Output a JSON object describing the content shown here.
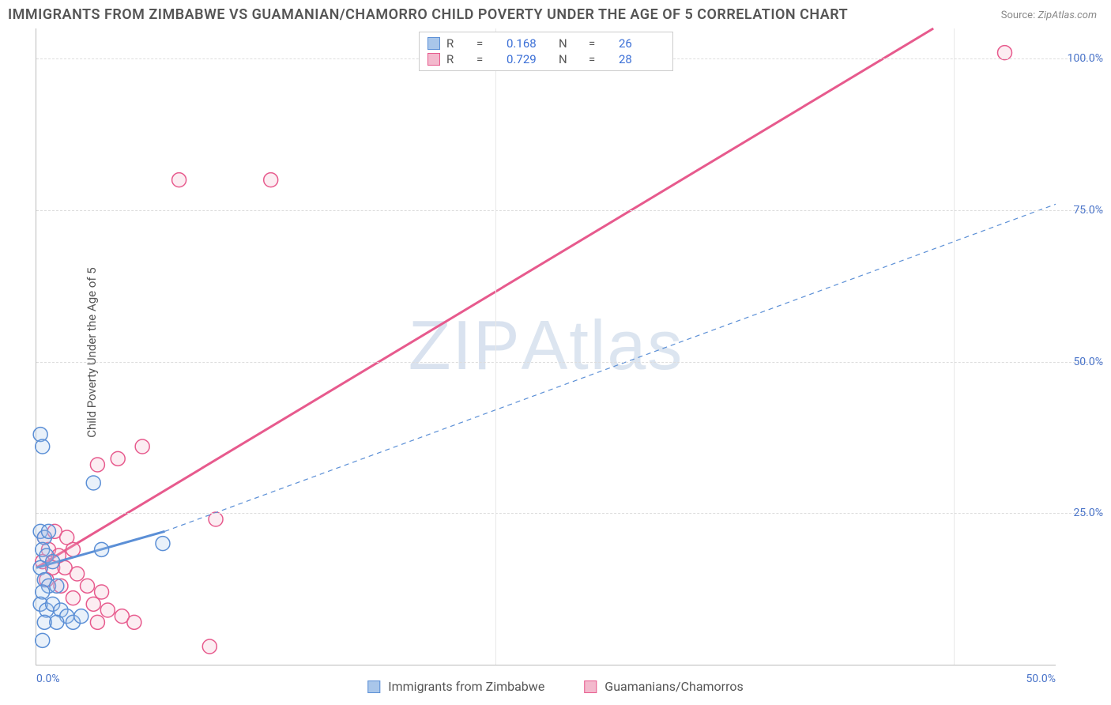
{
  "title": "IMMIGRANTS FROM ZIMBABWE VS GUAMANIAN/CHAMORRO CHILD POVERTY UNDER THE AGE OF 5 CORRELATION CHART",
  "source_label": "Source:",
  "source_value": "ZipAtlas.com",
  "y_axis_label": "Child Poverty Under the Age of 5",
  "watermark": "ZIPAtlas",
  "chart": {
    "type": "scatter",
    "background_color": "#ffffff",
    "grid_color": "#dddddd",
    "axis_color": "#bbbbbb",
    "tick_label_color": "#4a74c9",
    "xlim": [
      0,
      50
    ],
    "ylim": [
      0,
      105
    ],
    "x_ticks": [
      0.0,
      50.0
    ],
    "x_tick_labels": [
      "0.0%",
      "50.0%"
    ],
    "x_grid_positions": [
      22.5,
      45.0
    ],
    "y_ticks": [
      25.0,
      50.0,
      75.0,
      100.0
    ],
    "y_tick_labels": [
      "25.0%",
      "50.0%",
      "75.0%",
      "100.0%"
    ],
    "marker_radius": 9,
    "marker_stroke_width": 1.5,
    "marker_fill_opacity": 0.25,
    "series": [
      {
        "name": "Immigrants from Zimbabwe",
        "color_stroke": "#5b8fd6",
        "color_fill": "#a9c6ea",
        "r_value": "0.168",
        "n_value": "26",
        "trend_line": {
          "x1": 0,
          "y1": 16,
          "x2": 6.3,
          "y2": 22,
          "width": 3,
          "dash": ""
        },
        "trend_ext": {
          "x1": 6.3,
          "y1": 22,
          "x2": 50,
          "y2": 76,
          "width": 1.2,
          "dash": "6 5"
        },
        "points": [
          {
            "x": 0.2,
            "y": 38
          },
          {
            "x": 0.3,
            "y": 36
          },
          {
            "x": 0.2,
            "y": 22
          },
          {
            "x": 0.4,
            "y": 21
          },
          {
            "x": 0.6,
            "y": 22
          },
          {
            "x": 0.3,
            "y": 19
          },
          {
            "x": 0.5,
            "y": 18
          },
          {
            "x": 0.2,
            "y": 16
          },
          {
            "x": 0.8,
            "y": 17
          },
          {
            "x": 0.4,
            "y": 14
          },
          {
            "x": 0.6,
            "y": 13
          },
          {
            "x": 0.3,
            "y": 12
          },
          {
            "x": 1.0,
            "y": 13
          },
          {
            "x": 0.2,
            "y": 10
          },
          {
            "x": 0.5,
            "y": 9
          },
          {
            "x": 0.8,
            "y": 10
          },
          {
            "x": 1.2,
            "y": 9
          },
          {
            "x": 1.5,
            "y": 8
          },
          {
            "x": 0.4,
            "y": 7
          },
          {
            "x": 1.0,
            "y": 7
          },
          {
            "x": 1.8,
            "y": 7
          },
          {
            "x": 2.2,
            "y": 8
          },
          {
            "x": 0.3,
            "y": 4
          },
          {
            "x": 2.8,
            "y": 30
          },
          {
            "x": 3.2,
            "y": 19
          },
          {
            "x": 6.2,
            "y": 20
          }
        ]
      },
      {
        "name": "Guamanians/Chamorros",
        "color_stroke": "#e75a8d",
        "color_fill": "#f3b9cd",
        "r_value": "0.729",
        "n_value": "28",
        "trend_line": {
          "x1": 0,
          "y1": 16,
          "x2": 44,
          "y2": 105,
          "width": 3,
          "dash": ""
        },
        "trend_ext": null,
        "points": [
          {
            "x": 47.5,
            "y": 101
          },
          {
            "x": 7.0,
            "y": 80
          },
          {
            "x": 11.5,
            "y": 80
          },
          {
            "x": 4.0,
            "y": 34
          },
          {
            "x": 5.2,
            "y": 36
          },
          {
            "x": 3.0,
            "y": 33
          },
          {
            "x": 8.8,
            "y": 24
          },
          {
            "x": 0.4,
            "y": 21
          },
          {
            "x": 0.9,
            "y": 22
          },
          {
            "x": 1.5,
            "y": 21
          },
          {
            "x": 0.6,
            "y": 19
          },
          {
            "x": 1.1,
            "y": 18
          },
          {
            "x": 1.8,
            "y": 19
          },
          {
            "x": 0.3,
            "y": 17
          },
          {
            "x": 0.8,
            "y": 16
          },
          {
            "x": 1.4,
            "y": 16
          },
          {
            "x": 2.0,
            "y": 15
          },
          {
            "x": 0.5,
            "y": 14
          },
          {
            "x": 1.2,
            "y": 13
          },
          {
            "x": 2.5,
            "y": 13
          },
          {
            "x": 3.2,
            "y": 12
          },
          {
            "x": 1.8,
            "y": 11
          },
          {
            "x": 2.8,
            "y": 10
          },
          {
            "x": 3.5,
            "y": 9
          },
          {
            "x": 4.2,
            "y": 8
          },
          {
            "x": 3.0,
            "y": 7
          },
          {
            "x": 4.8,
            "y": 7
          },
          {
            "x": 8.5,
            "y": 3
          }
        ]
      }
    ]
  },
  "legend_top": {
    "r_label": "R",
    "n_label": "N",
    "eq": "="
  }
}
